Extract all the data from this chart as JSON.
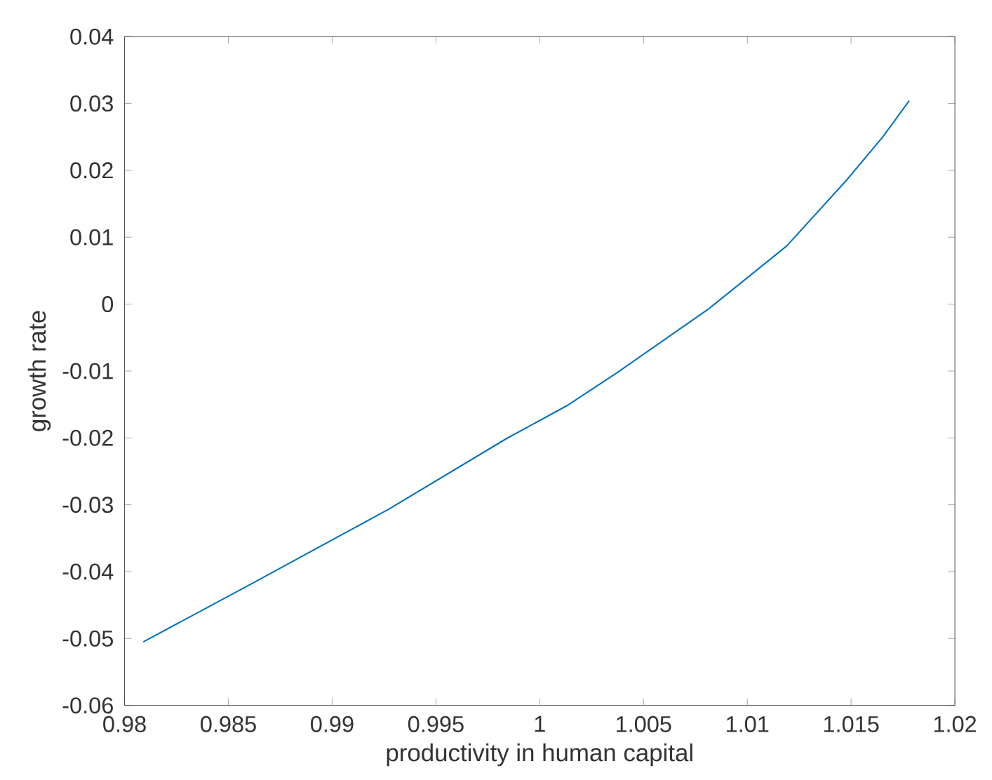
{
  "chart_data": {
    "type": "line",
    "xlabel": "productivity in human capital",
    "ylabel": "growth rate",
    "x": [
      0.9809,
      0.986,
      0.9927,
      0.9984,
      1.0013,
      1.0037,
      1.0081,
      1.0119,
      1.0148,
      1.0165,
      1.0178
    ],
    "series": [
      {
        "color": "#0072bd",
        "values": [
          -0.0505,
          -0.042,
          -0.0307,
          -0.0201,
          -0.0152,
          -0.0103,
          -0.0008,
          0.0087,
          0.0186,
          0.0249,
          0.0304
        ]
      }
    ],
    "xlim": [
      0.98,
      1.02
    ],
    "xticks": [
      0.98,
      0.985,
      0.99,
      0.995,
      1,
      1.005,
      1.01,
      1.015,
      1.02
    ],
    "ylim": [
      -0.06,
      0.04
    ],
    "yticks": [
      -0.06,
      -0.05,
      -0.04,
      -0.03,
      -0.02,
      -0.01,
      0,
      0.01,
      0.02,
      0.03,
      0.04
    ],
    "grid": false,
    "marker": "none",
    "line_style": "solid"
  }
}
